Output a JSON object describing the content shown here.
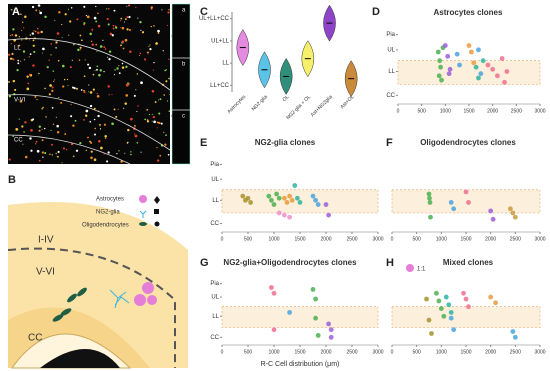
{
  "figure": {
    "letters": [
      "A",
      "B",
      "C",
      "D",
      "E",
      "F",
      "G",
      "H"
    ],
    "image_labels": [
      "LL",
      "V-VI",
      "CC",
      "a",
      "b",
      "c"
    ],
    "diagram": {
      "layers": [
        "I-IV",
        "V-VI",
        "CC"
      ],
      "legend": [
        "Astrocytes",
        "NG2-glia",
        "Oligodendrocytes"
      ]
    },
    "xlabel": "R-C Cell distribution (μm)",
    "h_legend": "1:1"
  },
  "chart_data": [
    {
      "type": "violin",
      "categories": [
        "Astrocytes",
        "NG2-glia",
        "OL",
        "NG2-glia + OL",
        "Ast+NG2glia",
        "Ast+OL"
      ],
      "values": [
        1.7,
        0.7,
        0.4,
        1.2,
        2.8,
        0.3
      ],
      "colors": [
        "#e48ae0",
        "#5bc3e6",
        "#2f8f7a",
        "#f6ef6a",
        "#8e44c9",
        "#c98a3c"
      ],
      "ylim": [
        -0.3,
        3.3
      ],
      "yticks": [
        {
          "value": 0,
          "label": "LL+CC"
        },
        {
          "value": 1,
          "label": "LL"
        },
        {
          "value": 2,
          "label": "UL+LL"
        },
        {
          "value": 3,
          "label": "UL+LL+CC"
        }
      ]
    },
    {
      "type": "scatter",
      "title": "Astrocytes clones",
      "xlim": [
        0,
        3000
      ],
      "ylim": [
        0.2,
        3.8
      ],
      "xticks": [
        0,
        500,
        1000,
        1500,
        2000,
        2500,
        3000
      ],
      "yticks": [
        {
          "value": 3.4,
          "label": "Pia"
        },
        {
          "value": 2.7,
          "label": "UL"
        },
        {
          "value": 1.7,
          "label": "LL"
        },
        {
          "value": 0.6,
          "label": "CC"
        }
      ],
      "series": [
        {
          "color": "#4caf50",
          "x": [
            850,
            880,
            900,
            870,
            920,
            950
          ],
          "values": [
            2.6,
            2.2,
            1.9,
            1.5,
            1.3,
            2.8
          ]
        },
        {
          "color": "#9c5fd6",
          "x": [
            1000,
            1050,
            1100,
            1080
          ],
          "values": [
            2.9,
            2.4,
            1.8,
            1.6
          ]
        },
        {
          "color": "#f06f8f",
          "x": [
            1900,
            2000,
            2100,
            2200,
            2300,
            2250
          ],
          "values": [
            2.0,
            1.8,
            1.5,
            2.3,
            1.7,
            1.2
          ]
        },
        {
          "color": "#4aa3df",
          "x": [
            1250,
            1300,
            1700,
            1750
          ],
          "values": [
            2.5,
            2.0,
            2.7,
            1.6
          ]
        },
        {
          "color": "#e89b3a",
          "x": [
            1500,
            1550,
            1600
          ],
          "values": [
            2.9,
            2.6,
            2.1
          ]
        },
        {
          "color": "#2bb5a0",
          "x": [
            1650,
            1700,
            1800
          ],
          "values": [
            1.9,
            1.4,
            2.2
          ]
        }
      ]
    },
    {
      "type": "scatter",
      "title": "NG2-glia clones",
      "xlim": [
        0,
        3000
      ],
      "ylim": [
        0.2,
        3.8
      ],
      "xticks": [
        0,
        500,
        1000,
        1500,
        2000,
        2500,
        3000
      ],
      "yticks": [
        {
          "value": 3.4,
          "label": "Pia"
        },
        {
          "value": 2.7,
          "label": "UL"
        },
        {
          "value": 1.7,
          "label": "LL"
        },
        {
          "value": 0.6,
          "label": "CC"
        }
      ],
      "series": [
        {
          "color": "#a6922a",
          "x": [
            400,
            450,
            500,
            550
          ],
          "values": [
            1.9,
            1.7,
            1.8,
            1.6
          ]
        },
        {
          "color": "#4caf50",
          "x": [
            900,
            950,
            1000,
            1050,
            1100
          ],
          "values": [
            1.9,
            1.7,
            1.5,
            2.0,
            1.8
          ]
        },
        {
          "color": "#e89b3a",
          "x": [
            1200,
            1250,
            1300,
            1350
          ],
          "values": [
            1.8,
            1.6,
            1.9,
            1.7
          ]
        },
        {
          "color": "#2bb5a0",
          "x": [
            1400,
            1450,
            1500
          ],
          "values": [
            2.4,
            1.8,
            1.6
          ]
        },
        {
          "color": "#4aa3df",
          "x": [
            1750,
            1800,
            1850
          ],
          "values": [
            1.9,
            1.7,
            1.5
          ]
        },
        {
          "color": "#f08fc8",
          "x": [
            1100,
            1200,
            1300
          ],
          "values": [
            1.1,
            1.0,
            0.9
          ]
        },
        {
          "color": "#9c5fd6",
          "x": [
            2000,
            2050
          ],
          "values": [
            1.5,
            1.0
          ]
        }
      ]
    },
    {
      "type": "scatter",
      "title": "Oligodendrocytes clones",
      "xlim": [
        0,
        3000
      ],
      "ylim": [
        0.2,
        3.8
      ],
      "xticks": [
        0,
        500,
        1000,
        1500,
        2000,
        2500,
        3000
      ],
      "series": [
        {
          "color": "#4caf50",
          "x": [
            750,
            760,
            770,
            780
          ],
          "values": [
            2.0,
            1.8,
            1.6,
            0.9
          ]
        },
        {
          "color": "#f06f8f",
          "x": [
            1500,
            1550
          ],
          "values": [
            2.1,
            1.6
          ]
        },
        {
          "color": "#4aa3df",
          "x": [
            1200,
            1250
          ],
          "values": [
            1.6,
            1.3
          ]
        },
        {
          "color": "#c99a3a",
          "x": [
            2400,
            2450,
            2500
          ],
          "values": [
            1.3,
            1.1,
            0.9
          ]
        },
        {
          "color": "#9c5fd6",
          "x": [
            2000,
            2050
          ],
          "values": [
            1.2,
            0.8
          ]
        }
      ]
    },
    {
      "type": "scatter",
      "title": "NG2-glia+Oligodendrocytes clones",
      "xlim": [
        0,
        3000
      ],
      "ylim": [
        0.2,
        3.8
      ],
      "xticks": [
        0,
        500,
        1000,
        1500,
        2000,
        2500,
        3000
      ],
      "yticks": [
        {
          "value": 3.4,
          "label": "Pia"
        },
        {
          "value": 2.7,
          "label": "UL"
        },
        {
          "value": 1.7,
          "label": "LL"
        },
        {
          "value": 0.6,
          "label": "CC"
        }
      ],
      "series": [
        {
          "color": "#f06f8f",
          "x": [
            950,
            1000,
            1000
          ],
          "values": [
            3.2,
            2.9,
            1.0
          ]
        },
        {
          "color": "#4caf50",
          "x": [
            1750,
            1800,
            1800,
            1850
          ],
          "values": [
            3.1,
            2.6,
            1.6,
            0.7
          ]
        },
        {
          "color": "#9c5fd6",
          "x": [
            2050,
            2100,
            2100
          ],
          "values": [
            1.3,
            1.0,
            0.6
          ]
        },
        {
          "color": "#4aa3df",
          "x": [
            1300
          ],
          "values": [
            1.9
          ]
        }
      ]
    },
    {
      "type": "scatter",
      "title": "Mixed clones",
      "xlim": [
        0,
        3000
      ],
      "ylim": [
        0.2,
        3.8
      ],
      "xticks": [
        0,
        500,
        1000,
        1500,
        2000,
        2500,
        3000
      ],
      "series": [
        {
          "color": "#a6922a",
          "x": [
            700,
            750,
            800
          ],
          "values": [
            2.6,
            1.5,
            0.8
          ]
        },
        {
          "color": "#4caf50",
          "x": [
            900,
            950,
            1000,
            1050
          ],
          "values": [
            2.9,
            2.5,
            2.1,
            1.7
          ]
        },
        {
          "color": "#2bb5a0",
          "x": [
            1100,
            1150,
            1200
          ],
          "values": [
            2.7,
            2.3,
            1.9
          ]
        },
        {
          "color": "#f06f8f",
          "x": [
            1450,
            1500,
            1550
          ],
          "values": [
            2.9,
            2.6,
            2.2
          ]
        },
        {
          "color": "#e89b3a",
          "x": [
            2000,
            2100
          ],
          "values": [
            2.7,
            2.4
          ]
        },
        {
          "color": "#4aa3df",
          "x": [
            1200,
            1250,
            2450,
            2500
          ],
          "values": [
            1.6,
            1.0,
            0.9,
            0.6
          ]
        }
      ]
    }
  ]
}
